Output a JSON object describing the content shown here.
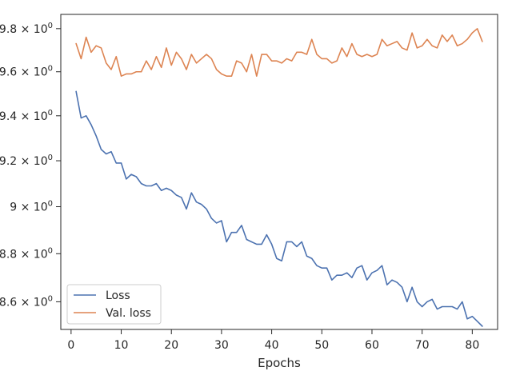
{
  "chart_data": {
    "type": "line",
    "xlabel": "Epochs",
    "ylabel": "",
    "title": "",
    "xlim": [
      -2.05,
      85.05
    ],
    "ylim": [
      8.487,
      9.867
    ],
    "y_scale": "log",
    "grid": false,
    "legend_position": "lower-left",
    "x_ticks": [
      0,
      10,
      20,
      30,
      40,
      50,
      60,
      70,
      80
    ],
    "y_ticks": [
      {
        "value": 8.6,
        "mantissa": "8.6"
      },
      {
        "value": 8.8,
        "mantissa": "8.8"
      },
      {
        "value": 9.0,
        "mantissa": "9"
      },
      {
        "value": 9.2,
        "mantissa": "9.2"
      },
      {
        "value": 9.4,
        "mantissa": "9.4"
      },
      {
        "value": 9.6,
        "mantissa": "9.6"
      },
      {
        "value": 9.8,
        "mantissa": "9.8"
      }
    ],
    "y_tick_suffix_base": "× 10",
    "y_tick_suffix_exp": "0",
    "x": [
      1,
      2,
      3,
      4,
      5,
      6,
      7,
      8,
      9,
      10,
      11,
      12,
      13,
      14,
      15,
      16,
      17,
      18,
      19,
      20,
      21,
      22,
      23,
      24,
      25,
      26,
      27,
      28,
      29,
      30,
      31,
      32,
      33,
      34,
      35,
      36,
      37,
      38,
      39,
      40,
      41,
      42,
      43,
      44,
      45,
      46,
      47,
      48,
      49,
      50,
      51,
      52,
      53,
      54,
      55,
      56,
      57,
      58,
      59,
      60,
      61,
      62,
      63,
      64,
      65,
      66,
      67,
      68,
      69,
      70,
      71,
      72,
      73,
      74,
      75,
      76,
      77,
      78,
      79,
      80,
      81,
      82
    ],
    "series": [
      {
        "name": "Loss",
        "color": "#4c72b0",
        "values": [
          9.51,
          9.39,
          9.4,
          9.36,
          9.31,
          9.25,
          9.23,
          9.24,
          9.19,
          9.19,
          9.12,
          9.14,
          9.13,
          9.1,
          9.09,
          9.09,
          9.1,
          9.07,
          9.08,
          9.07,
          9.05,
          9.04,
          8.99,
          9.06,
          9.02,
          9.01,
          8.99,
          8.95,
          8.93,
          8.94,
          8.85,
          8.89,
          8.89,
          8.92,
          8.86,
          8.85,
          8.84,
          8.84,
          8.88,
          8.84,
          8.78,
          8.77,
          8.85,
          8.85,
          8.83,
          8.85,
          8.79,
          8.78,
          8.75,
          8.74,
          8.74,
          8.69,
          8.71,
          8.71,
          8.72,
          8.7,
          8.74,
          8.75,
          8.69,
          8.72,
          8.73,
          8.75,
          8.67,
          8.69,
          8.68,
          8.66,
          8.6,
          8.66,
          8.6,
          8.58,
          8.6,
          8.61,
          8.57,
          8.58,
          8.58,
          8.58,
          8.57,
          8.6,
          8.53,
          8.54,
          8.52,
          8.5
        ]
      },
      {
        "name": "Val. loss",
        "color": "#dd8452",
        "values": [
          9.73,
          9.66,
          9.76,
          9.69,
          9.72,
          9.71,
          9.64,
          9.61,
          9.67,
          9.58,
          9.59,
          9.59,
          9.6,
          9.6,
          9.65,
          9.61,
          9.67,
          9.62,
          9.71,
          9.63,
          9.69,
          9.66,
          9.61,
          9.68,
          9.64,
          9.66,
          9.68,
          9.66,
          9.61,
          9.59,
          9.58,
          9.58,
          9.65,
          9.64,
          9.6,
          9.68,
          9.58,
          9.68,
          9.68,
          9.65,
          9.65,
          9.64,
          9.66,
          9.65,
          9.69,
          9.69,
          9.68,
          9.75,
          9.68,
          9.66,
          9.66,
          9.64,
          9.65,
          9.71,
          9.67,
          9.73,
          9.68,
          9.67,
          9.68,
          9.67,
          9.68,
          9.75,
          9.72,
          9.73,
          9.74,
          9.71,
          9.7,
          9.78,
          9.71,
          9.72,
          9.75,
          9.72,
          9.71,
          9.77,
          9.74,
          9.77,
          9.72,
          9.73,
          9.75,
          9.78,
          9.8,
          9.74
        ]
      }
    ]
  }
}
